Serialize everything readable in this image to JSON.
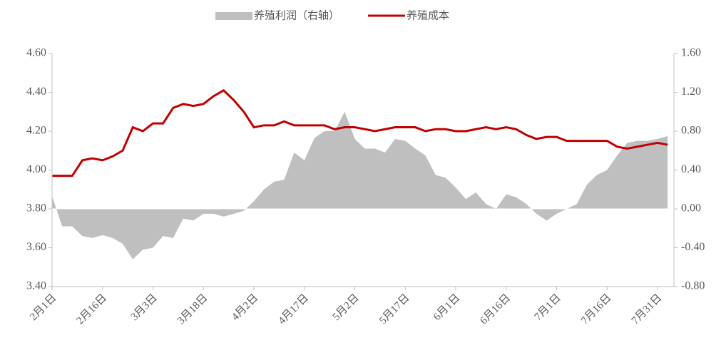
{
  "chart_data": {
    "type": "line",
    "categories": [
      "2月1日",
      null,
      null,
      null,
      null,
      "2月16日",
      null,
      null,
      null,
      null,
      "3月3日",
      null,
      null,
      null,
      null,
      "3月18日",
      null,
      null,
      null,
      null,
      "4月2日",
      null,
      null,
      null,
      null,
      "4月17日",
      null,
      null,
      null,
      null,
      "5月2日",
      null,
      null,
      null,
      null,
      "5月17日",
      null,
      null,
      null,
      null,
      "6月1日",
      null,
      null,
      null,
      null,
      "6月16日",
      null,
      null,
      null,
      null,
      "7月1日",
      null,
      null,
      null,
      null,
      "7月16日",
      null,
      null,
      null,
      null,
      "7月31日",
      null
    ],
    "series": [
      {
        "name": "养殖利润（右轴）",
        "type": "area",
        "axis": "y2",
        "color": "#bfbfbf",
        "values": [
          0.13,
          -0.18,
          -0.18,
          -0.28,
          -0.3,
          -0.27,
          -0.3,
          -0.36,
          -0.52,
          -0.42,
          -0.4,
          -0.28,
          -0.3,
          -0.1,
          -0.12,
          -0.05,
          -0.05,
          -0.08,
          -0.05,
          -0.02,
          0.08,
          0.2,
          0.28,
          0.3,
          0.58,
          0.5,
          0.73,
          0.8,
          0.8,
          1.0,
          0.72,
          0.62,
          0.62,
          0.58,
          0.72,
          0.7,
          0.62,
          0.55,
          0.35,
          0.32,
          0.22,
          0.1,
          0.17,
          0.05,
          0.0,
          0.15,
          0.12,
          0.05,
          -0.05,
          -0.12,
          -0.05,
          0.0,
          0.05,
          0.25,
          0.35,
          0.4,
          0.55,
          0.68,
          0.7,
          0.7,
          0.72,
          0.75
        ]
      },
      {
        "name": "养殖成本",
        "type": "line",
        "axis": "y",
        "color": "#c00000",
        "values": [
          3.97,
          3.97,
          3.97,
          4.05,
          4.06,
          4.05,
          4.07,
          4.1,
          4.22,
          4.2,
          4.24,
          4.24,
          4.32,
          4.34,
          4.33,
          4.34,
          4.38,
          4.41,
          4.36,
          4.3,
          4.22,
          4.23,
          4.23,
          4.25,
          4.23,
          4.23,
          4.23,
          4.23,
          4.21,
          4.22,
          4.22,
          4.21,
          4.2,
          4.21,
          4.22,
          4.22,
          4.22,
          4.2,
          4.21,
          4.21,
          4.2,
          4.2,
          4.21,
          4.22,
          4.21,
          4.22,
          4.21,
          4.18,
          4.16,
          4.17,
          4.17,
          4.15,
          4.15,
          4.15,
          4.15,
          4.15,
          4.12,
          4.11,
          4.12,
          4.13,
          4.14,
          4.13
        ]
      }
    ],
    "ylim": [
      3.4,
      4.6
    ],
    "yticks": [
      {
        "value": 3.4,
        "label": "3.40"
      },
      {
        "value": 3.6,
        "label": "3.60"
      },
      {
        "value": 3.8,
        "label": "3.80"
      },
      {
        "value": 4.0,
        "label": "4.00"
      },
      {
        "value": 4.2,
        "label": "4.20"
      },
      {
        "value": 4.4,
        "label": "4.40"
      },
      {
        "value": 4.6,
        "label": "4.60"
      }
    ],
    "y2lim": [
      -0.8,
      1.6
    ],
    "y2ticks": [
      {
        "value": -0.8,
        "label": "-0.80"
      },
      {
        "value": -0.4,
        "label": "-0.40"
      },
      {
        "value": 0,
        "label": "0.00"
      },
      {
        "value": 0.4,
        "label": "0.40"
      },
      {
        "value": 0.8,
        "label": "0.80"
      },
      {
        "value": 1.2,
        "label": "1.20"
      },
      {
        "value": 1.6,
        "label": "1.60"
      }
    ],
    "legend": "top"
  }
}
